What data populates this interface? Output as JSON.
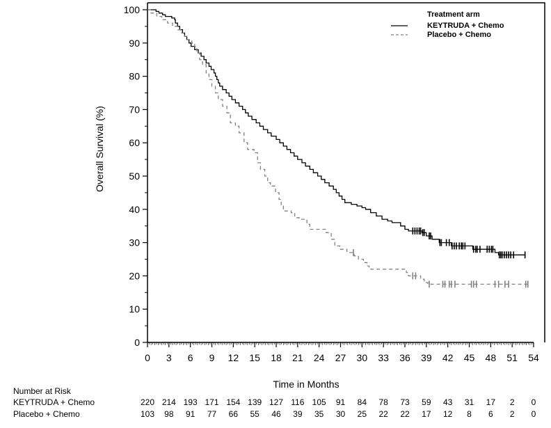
{
  "chart_data": {
    "type": "line",
    "subtype": "kaplan-meier",
    "title": "",
    "xlabel": "Time in Months",
    "ylabel": "Overall Survival (%)",
    "xlim": [
      0,
      54
    ],
    "ylim": [
      0,
      100
    ],
    "x_ticks": [
      0,
      3,
      6,
      9,
      12,
      15,
      18,
      21,
      24,
      27,
      30,
      33,
      36,
      39,
      42,
      45,
      48,
      51,
      54
    ],
    "y_ticks": [
      0,
      10,
      20,
      30,
      40,
      50,
      60,
      70,
      80,
      90,
      100
    ],
    "grid": false,
    "legend": {
      "title": "Treatment arm",
      "position": "top-right",
      "entries": [
        {
          "label": "KEYTRUDA + Chemo",
          "style": "solid",
          "color": "#000000"
        },
        {
          "label": "Placebo + Chemo",
          "style": "dashed",
          "color": "#808080"
        }
      ]
    },
    "series": [
      {
        "name": "KEYTRUDA + Chemo",
        "color": "#000000",
        "style": "solid",
        "points": [
          [
            0,
            100
          ],
          [
            0.8,
            100
          ],
          [
            1.2,
            99.5
          ],
          [
            1.6,
            99
          ],
          [
            2.1,
            98.5
          ],
          [
            2.5,
            98
          ],
          [
            3.4,
            97.5
          ],
          [
            3.8,
            97
          ],
          [
            3.9,
            96
          ],
          [
            4.2,
            95
          ],
          [
            4.5,
            94
          ],
          [
            4.9,
            93
          ],
          [
            5.2,
            92
          ],
          [
            5.5,
            91
          ],
          [
            5.8,
            90
          ],
          [
            6.1,
            89
          ],
          [
            6.6,
            88
          ],
          [
            7.1,
            87
          ],
          [
            7.5,
            86
          ],
          [
            7.9,
            85
          ],
          [
            8.2,
            84
          ],
          [
            8.6,
            83
          ],
          [
            8.9,
            82
          ],
          [
            9.3,
            81
          ],
          [
            9.5,
            80
          ],
          [
            9.7,
            79
          ],
          [
            9.9,
            78
          ],
          [
            10.1,
            77
          ],
          [
            10.5,
            76
          ],
          [
            11,
            75
          ],
          [
            11.4,
            74
          ],
          [
            11.8,
            73
          ],
          [
            12.3,
            72
          ],
          [
            12.8,
            71
          ],
          [
            13.3,
            70
          ],
          [
            13.7,
            69
          ],
          [
            14.1,
            68
          ],
          [
            14.6,
            67
          ],
          [
            15.2,
            66
          ],
          [
            15.7,
            65
          ],
          [
            16.2,
            64
          ],
          [
            16.8,
            63
          ],
          [
            17.3,
            62
          ],
          [
            18,
            61
          ],
          [
            18.5,
            60
          ],
          [
            19,
            59
          ],
          [
            19.5,
            58
          ],
          [
            20,
            57
          ],
          [
            20.5,
            56
          ],
          [
            21,
            55
          ],
          [
            21.6,
            54
          ],
          [
            22.1,
            53
          ],
          [
            22.7,
            52
          ],
          [
            23.2,
            51
          ],
          [
            23.8,
            50
          ],
          [
            24.3,
            49
          ],
          [
            24.8,
            48
          ],
          [
            25.4,
            47
          ],
          [
            26,
            46
          ],
          [
            26.4,
            45
          ],
          [
            26.8,
            44
          ],
          [
            27.2,
            43
          ],
          [
            27.6,
            42
          ],
          [
            28.5,
            41.5
          ],
          [
            29.3,
            41
          ],
          [
            30,
            40.5
          ],
          [
            30.5,
            40
          ],
          [
            31.2,
            39
          ],
          [
            32,
            38
          ],
          [
            32.8,
            37
          ],
          [
            33.6,
            36.5
          ],
          [
            34.2,
            36
          ],
          [
            35.4,
            35
          ],
          [
            36,
            34
          ],
          [
            36.5,
            33.5
          ],
          [
            38.4,
            33
          ],
          [
            39,
            32
          ],
          [
            39.8,
            31
          ],
          [
            40.8,
            30
          ],
          [
            42.5,
            29
          ],
          [
            45.5,
            28
          ],
          [
            48.6,
            27
          ],
          [
            49.1,
            26.3
          ],
          [
            52.8,
            26.3
          ]
        ],
        "censor_times": [
          37.1,
          37.4,
          37.7,
          38,
          38.2,
          38.5,
          38.7,
          39.4,
          39.6,
          40.9,
          41.1,
          41.8,
          42.2,
          42.6,
          42.9,
          43.2,
          43.6,
          43.9,
          44.1,
          44.4,
          45.6,
          45.9,
          46.1,
          46.5,
          47.5,
          47.8,
          48.1,
          48.3,
          49.2,
          49.4,
          49.6,
          49.9,
          50.2,
          50.5,
          50.8,
          51.2,
          52.8
        ]
      },
      {
        "name": "Placebo + Chemo",
        "color": "#808080",
        "style": "dashed",
        "points": [
          [
            0,
            100
          ],
          [
            0.5,
            99
          ],
          [
            1.3,
            98
          ],
          [
            2,
            97
          ],
          [
            2.8,
            96
          ],
          [
            3.5,
            95
          ],
          [
            4.2,
            94
          ],
          [
            4.8,
            93
          ],
          [
            5.2,
            92
          ],
          [
            5.5,
            91
          ],
          [
            6.2,
            90
          ],
          [
            6.6,
            89
          ],
          [
            6.9,
            87
          ],
          [
            7.3,
            85
          ],
          [
            7.7,
            83.5
          ],
          [
            8.2,
            81
          ],
          [
            8.6,
            79
          ],
          [
            9,
            77
          ],
          [
            9.5,
            75
          ],
          [
            9.9,
            73
          ],
          [
            10.5,
            71
          ],
          [
            11.1,
            69
          ],
          [
            11.6,
            66
          ],
          [
            12.3,
            65
          ],
          [
            12.8,
            63
          ],
          [
            13.5,
            60
          ],
          [
            14,
            58
          ],
          [
            14.9,
            57
          ],
          [
            15.4,
            54
          ],
          [
            15.8,
            52
          ],
          [
            16.4,
            50
          ],
          [
            16.8,
            48
          ],
          [
            17.2,
            47
          ],
          [
            17.9,
            45
          ],
          [
            18.4,
            43
          ],
          [
            18.7,
            41
          ],
          [
            19,
            39.5
          ],
          [
            20.1,
            39
          ],
          [
            20.6,
            37.5
          ],
          [
            21.2,
            37
          ],
          [
            22.3,
            35.5
          ],
          [
            22.7,
            34
          ],
          [
            25,
            33
          ],
          [
            25.7,
            31
          ],
          [
            26.2,
            29
          ],
          [
            26.9,
            28
          ],
          [
            27.9,
            27
          ],
          [
            28.9,
            26
          ],
          [
            29.5,
            25
          ],
          [
            30.2,
            24
          ],
          [
            30.7,
            23
          ],
          [
            31,
            22
          ],
          [
            36.2,
            21
          ],
          [
            36.5,
            20
          ],
          [
            38.2,
            19
          ],
          [
            38.7,
            18
          ],
          [
            39.2,
            17.5
          ],
          [
            53.2,
            17.5
          ]
        ],
        "censor_times": [
          28.8,
          37.1,
          37.5,
          39.4,
          41.3,
          41.6,
          42.2,
          42.5,
          43,
          45.3,
          45.6,
          46,
          48.6,
          49.1,
          50,
          50.5,
          52.9,
          53.2
        ]
      }
    ],
    "number_at_risk": {
      "title": "Number at Risk",
      "times": [
        0,
        3,
        6,
        9,
        12,
        15,
        18,
        21,
        24,
        27,
        30,
        33,
        36,
        39,
        42,
        45,
        48,
        51,
        54
      ],
      "rows": [
        {
          "label": "KEYTRUDA + Chemo",
          "values": [
            220,
            214,
            193,
            171,
            154,
            139,
            127,
            116,
            105,
            91,
            84,
            78,
            73,
            59,
            43,
            31,
            17,
            2,
            0
          ]
        },
        {
          "label": "Placebo + Chemo",
          "values": [
            103,
            98,
            91,
            77,
            66,
            55,
            46,
            39,
            35,
            30,
            25,
            22,
            22,
            17,
            12,
            8,
            6,
            2,
            0
          ]
        }
      ]
    }
  }
}
